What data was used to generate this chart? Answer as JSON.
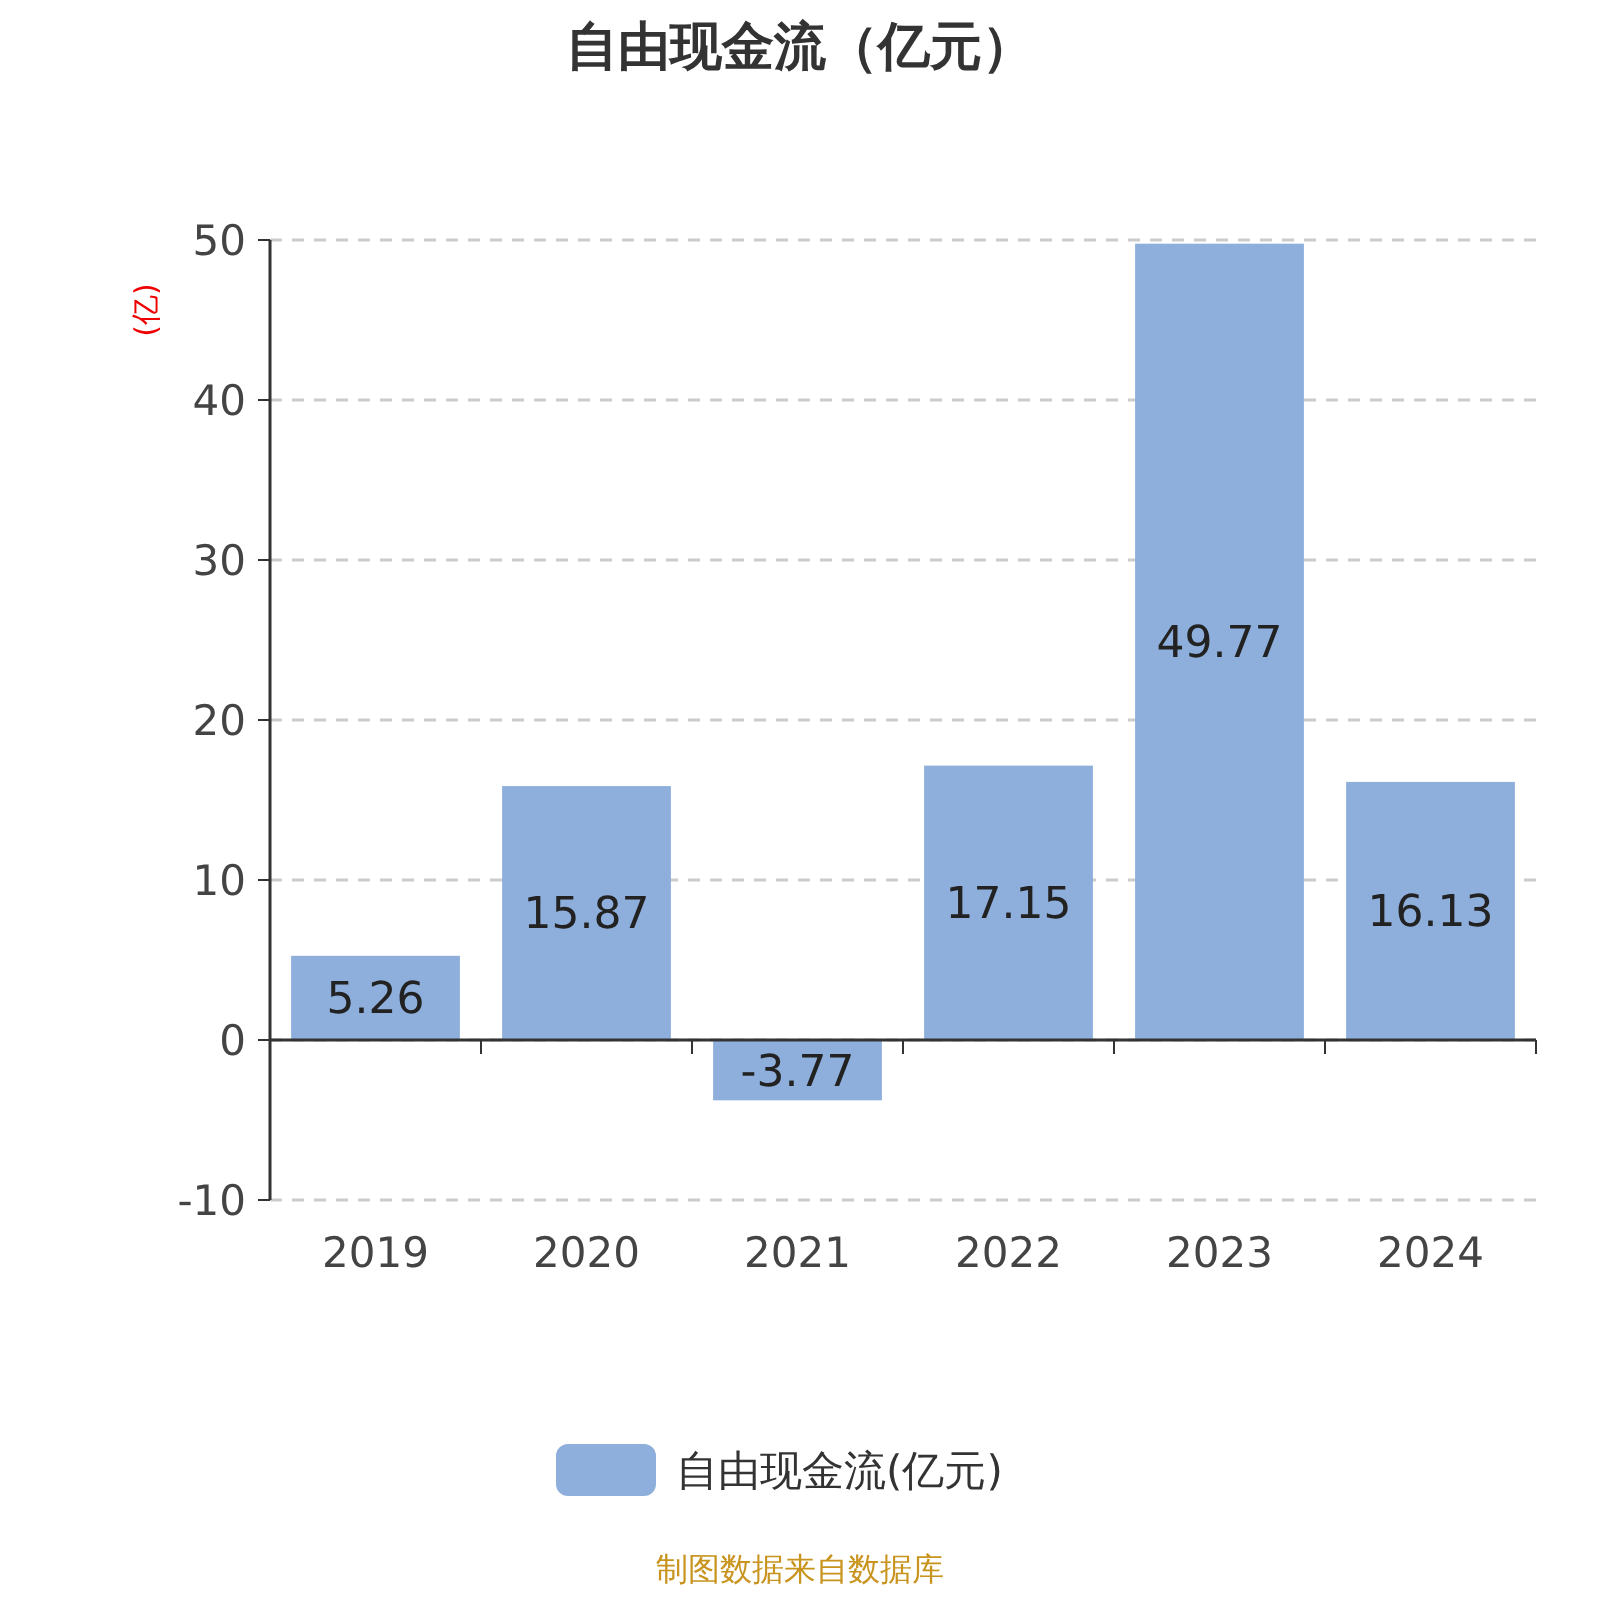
{
  "chart_data": {
    "type": "bar",
    "title": "自由现金流（亿元）",
    "ylabel": "(亿)",
    "categories": [
      "2019",
      "2020",
      "2021",
      "2022",
      "2023",
      "2024"
    ],
    "series": [
      {
        "name": "自由现金流(亿元)",
        "color": "#8eaedb",
        "values": [
          5.26,
          15.87,
          -3.77,
          17.15,
          49.77,
          16.13
        ]
      }
    ],
    "ylim": [
      -10,
      50
    ],
    "yticks": [
      -10,
      0,
      10,
      20,
      30,
      40,
      50
    ],
    "grid": "y",
    "data_labels": true,
    "legend": "bottom",
    "annotations": [
      "制图数据来自数据库"
    ]
  }
}
